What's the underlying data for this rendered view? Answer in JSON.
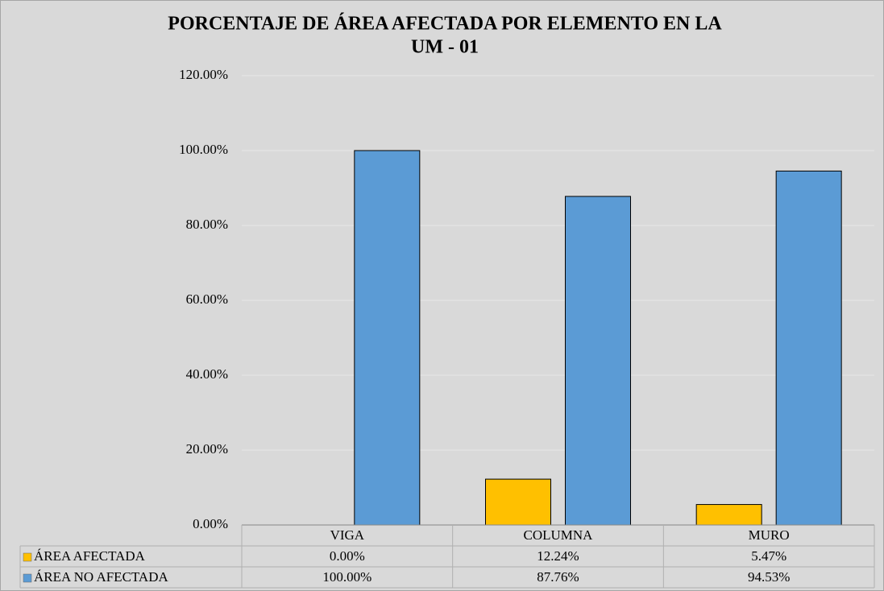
{
  "chart_data": {
    "type": "bar",
    "title": [
      "PORCENTAJE DE ÁREA AFECTADA POR ELEMENTO EN LA",
      "UM - 01"
    ],
    "categories": [
      "VIGA",
      "COLUMNA",
      "MURO"
    ],
    "series": [
      {
        "name": "ÁREA AFECTADA",
        "color": "#FFC000",
        "values": [
          0,
          12.24,
          5.47
        ],
        "value_labels": [
          "0.00%",
          "12.24%",
          "5.47%"
        ]
      },
      {
        "name": "ÁREA NO AFECTADA",
        "color": "#5B9BD5",
        "values": [
          100,
          87.76,
          94.53
        ],
        "value_labels": [
          "100.00%",
          "87.76%",
          "94.53%"
        ]
      }
    ],
    "ylim": [
      0,
      120
    ],
    "yticks": [
      {
        "value": 0,
        "label": "0.00%"
      },
      {
        "value": 20,
        "label": "20.00%"
      },
      {
        "value": 40,
        "label": "40.00%"
      },
      {
        "value": 60,
        "label": "60.00%"
      },
      {
        "value": 80,
        "label": "80.00%"
      },
      {
        "value": 100,
        "label": "100.00%"
      },
      {
        "value": 120,
        "label": "120.00%"
      }
    ],
    "grid": true
  }
}
